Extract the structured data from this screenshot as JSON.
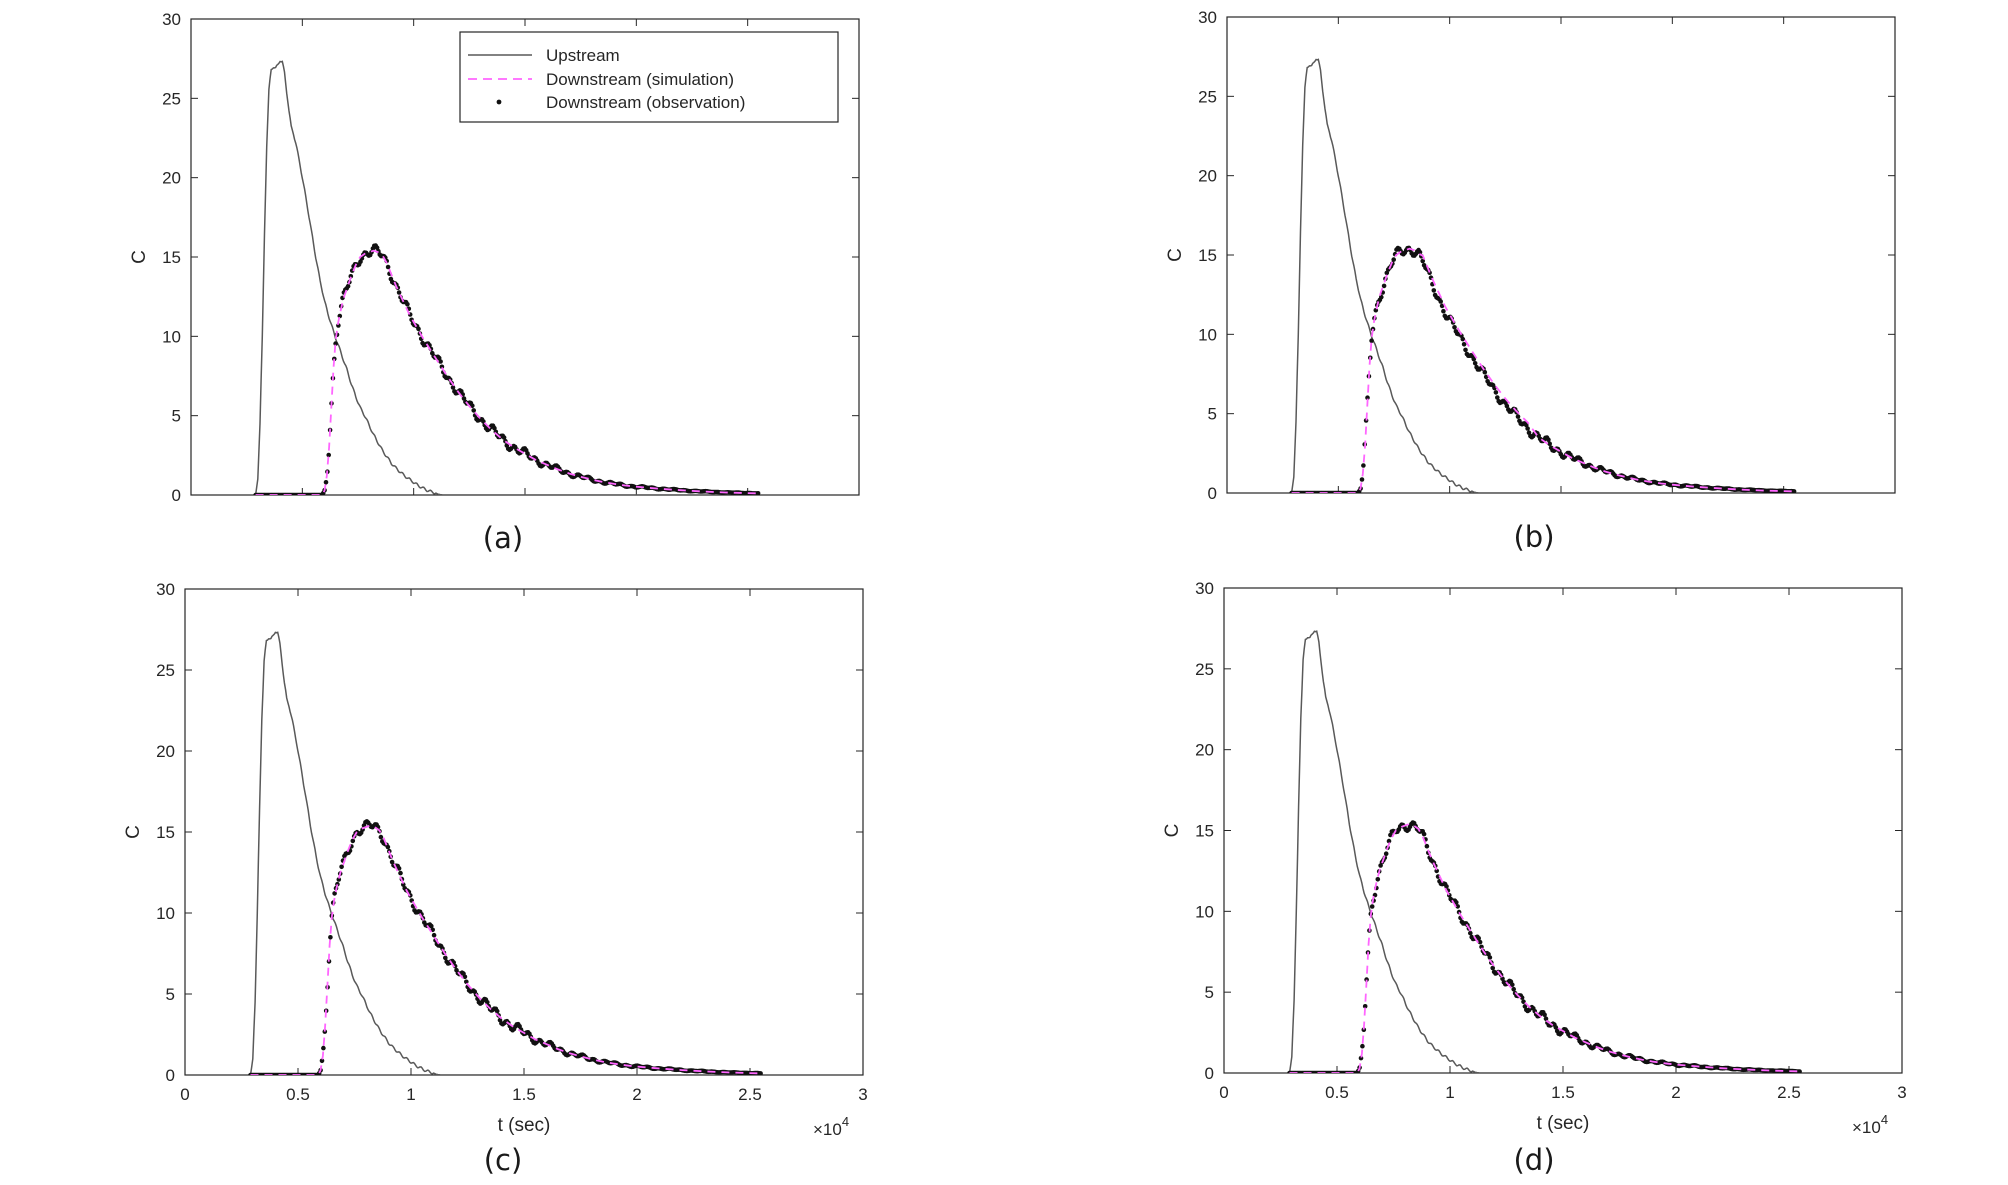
{
  "figure": {
    "exponent_prefix": "×10",
    "exponent_power": "4"
  },
  "legend": {
    "entries": [
      {
        "label": "Upstream",
        "color": "#595959",
        "style": "solid"
      },
      {
        "label": "Downstream  (simulation)",
        "color": "#ff66ff",
        "style": "dashed"
      },
      {
        "label": "Downstream  (observation)",
        "color": "#111111",
        "style": "dots"
      }
    ]
  },
  "chart_data": [
    {
      "type": "line",
      "caption": "(a)",
      "ylabel": "C",
      "xlabel": "",
      "xlim": [
        0,
        30000
      ],
      "ylim": [
        0,
        30
      ],
      "yticks": [
        "0",
        "5",
        "10",
        "15",
        "20",
        "25",
        "30"
      ],
      "xticks": [],
      "grid": false,
      "legend_position": "top-right",
      "show_legend": true,
      "variant": "a"
    },
    {
      "type": "line",
      "caption": "(b)",
      "ylabel": "C",
      "xlabel": "",
      "xlim": [
        0,
        30000
      ],
      "ylim": [
        0,
        30
      ],
      "yticks": [
        "0",
        "5",
        "10",
        "15",
        "20",
        "25",
        "30"
      ],
      "xticks": [],
      "grid": false,
      "show_legend": false,
      "variant": "b"
    },
    {
      "type": "line",
      "caption": "(c)",
      "ylabel": "C",
      "xlabel": "t (sec)",
      "xlim": [
        0,
        30000
      ],
      "ylim": [
        0,
        30
      ],
      "yticks": [
        "0",
        "5",
        "10",
        "15",
        "20",
        "25",
        "30"
      ],
      "xticks": [
        "0",
        "0.5",
        "1",
        "1.5",
        "2",
        "2.5",
        "3"
      ],
      "grid": false,
      "show_legend": false,
      "variant": "c"
    },
    {
      "type": "line",
      "caption": "(d)",
      "ylabel": "C",
      "xlabel": "t (sec)",
      "xlim": [
        0,
        30000
      ],
      "ylim": [
        0,
        30
      ],
      "yticks": [
        "0",
        "5",
        "10",
        "15",
        "20",
        "25",
        "30"
      ],
      "xticks": [
        "0",
        "0.5",
        "1",
        "1.5",
        "2",
        "2.5",
        "3"
      ],
      "grid": false,
      "show_legend": false,
      "variant": "d"
    }
  ],
  "series_shape": {
    "upstream": {
      "name": "Upstream",
      "x": [
        0,
        2900,
        3000,
        3100,
        3200,
        3300,
        3400,
        3500,
        3600,
        3700,
        3800,
        3900,
        4000,
        4100,
        4200,
        4300,
        4400,
        4500,
        4600,
        4700,
        4800,
        4900,
        5000,
        5200,
        5400,
        5600,
        5800,
        6000,
        6200,
        6400,
        6600,
        6800,
        7000,
        7200,
        7400,
        7600,
        7800,
        8000,
        8200,
        8400,
        8600,
        8800,
        9000,
        9200,
        9400,
        9600,
        9800,
        10000,
        10200,
        10400,
        10600,
        10800,
        11000,
        11100,
        11200,
        11300,
        25500
      ],
      "y": [
        0,
        0,
        1.0,
        4.5,
        10.0,
        16.5,
        22.0,
        25.5,
        26.8,
        27.0,
        26.9,
        27.1,
        27.4,
        27.3,
        26.6,
        25.4,
        24.2,
        23.2,
        22.8,
        22.2,
        21.5,
        20.8,
        20.0,
        18.4,
        16.7,
        15.0,
        13.5,
        12.2,
        11.2,
        10.3,
        9.5,
        8.7,
        7.9,
        7.0,
        6.2,
        5.5,
        5.0,
        4.4,
        3.8,
        3.3,
        2.8,
        2.4,
        2.0,
        1.7,
        1.45,
        1.2,
        1.0,
        0.8,
        0.6,
        0.45,
        0.3,
        0.2,
        0.12,
        0.05,
        0.02,
        0,
        0
      ]
    },
    "downstream_simulation": {
      "name": "Downstream  (simulation)",
      "x": [
        2900,
        5900,
        6000,
        6100,
        6200,
        6300,
        6400,
        6500,
        6600,
        6700,
        6800,
        6900,
        7000,
        7200,
        7400,
        7600,
        7800,
        8000,
        8200,
        8400,
        8600,
        8800,
        9000,
        9200,
        9400,
        9600,
        9800,
        10000,
        10500,
        11000,
        11500,
        12000,
        12500,
        13000,
        13500,
        14000,
        14500,
        15000,
        15500,
        16000,
        16500,
        17000,
        17500,
        18000,
        18500,
        19000,
        19500,
        20000,
        21000,
        22000,
        23000,
        24000,
        25000,
        25500
      ],
      "y": [
        0,
        0,
        0.3,
        1.2,
        3.0,
        5.5,
        8.0,
        9.8,
        10.8,
        11.5,
        12.1,
        12.6,
        13.0,
        13.8,
        14.5,
        15.0,
        15.2,
        15.3,
        15.4,
        15.3,
        15.1,
        14.6,
        13.9,
        13.2,
        12.6,
        12.0,
        11.4,
        10.9,
        9.7,
        8.6,
        7.5,
        6.5,
        5.6,
        4.8,
        4.1,
        3.5,
        3.0,
        2.6,
        2.2,
        1.9,
        1.6,
        1.35,
        1.15,
        0.97,
        0.82,
        0.7,
        0.6,
        0.52,
        0.4,
        0.3,
        0.22,
        0.16,
        0.12,
        0.1
      ]
    },
    "downstream_observation": {
      "name": "Downstream  (observation)",
      "x_start": 2900,
      "x_end": 25500,
      "step": 62
    }
  }
}
